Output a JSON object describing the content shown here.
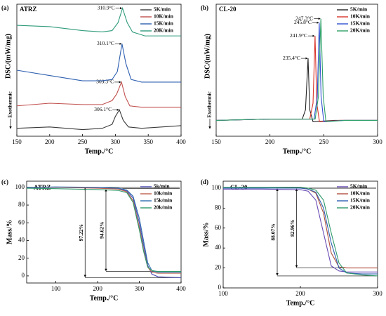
{
  "chart_data": [
    {
      "type": "line",
      "label": "(a)",
      "sample": "ATRZ",
      "xlabel": "Temp./°C",
      "ylabel": "DSC/(mW/mg)",
      "exo_label": "Exothermic",
      "xlim": [
        150,
        400
      ],
      "xticks": [
        150,
        200,
        250,
        300,
        350,
        400
      ],
      "ylim": [
        0,
        10
      ],
      "series": [
        {
          "name": "5K/min",
          "color": "#3a3a3a",
          "peak_label": "306.1°C",
          "x": [
            150,
            200,
            250,
            280,
            295,
            300,
            306.1,
            312,
            320,
            340,
            400
          ],
          "values": [
            0.6,
            0.7,
            0.5,
            0.6,
            0.9,
            1.5,
            2.0,
            1.2,
            0.7,
            0.6,
            0.8
          ]
        },
        {
          "name": "10K/min",
          "color": "#c0504d",
          "peak_label": "309.3°C",
          "x": [
            150,
            200,
            250,
            280,
            295,
            302,
            309.3,
            315,
            322,
            340,
            400
          ],
          "values": [
            2.3,
            2.5,
            2.4,
            2.4,
            2.7,
            3.2,
            4.1,
            3.0,
            2.3,
            2.2,
            2.2
          ]
        },
        {
          "name": "15K/min",
          "color": "#2e5fb0",
          "peak_label": "310.1°C",
          "x": [
            150,
            200,
            250,
            280,
            295,
            303,
            310.1,
            316,
            324,
            340,
            400
          ],
          "values": [
            5.0,
            4.6,
            4.2,
            4.2,
            4.3,
            4.9,
            7.0,
            5.5,
            4.3,
            4.1,
            4.1
          ]
        },
        {
          "name": "20K/min",
          "color": "#2e9a7a",
          "peak_label": "310.9°C",
          "x": [
            150,
            200,
            250,
            280,
            295,
            304,
            310.9,
            318,
            326,
            345,
            400
          ],
          "values": [
            8.4,
            8.3,
            8.0,
            7.9,
            8.0,
            8.6,
            9.7,
            8.6,
            7.9,
            7.6,
            7.6
          ]
        }
      ]
    },
    {
      "type": "line",
      "label": "(b)",
      "sample": "CL-20",
      "xlabel": "Temp./°C",
      "ylabel": "DSC/(mW/mg)",
      "exo_label": "Exothermic",
      "xlim": [
        150,
        300
      ],
      "xticks": [
        150,
        200,
        250,
        300
      ],
      "ylim": [
        0,
        10
      ],
      "series": [
        {
          "name": "5K/min",
          "color": "#222222",
          "peak_label": "235.4°C",
          "x": [
            150,
            200,
            230,
            233,
            235.4,
            237,
            240,
            260,
            300
          ],
          "values": [
            1.2,
            1.3,
            1.3,
            2,
            5.9,
            2,
            1.1,
            1.2,
            1.2
          ]
        },
        {
          "name": "10K/min",
          "color": "#d9342b",
          "peak_label": "241.9°C",
          "x": [
            150,
            200,
            237,
            240,
            241.9,
            243.5,
            246,
            265,
            300
          ],
          "values": [
            1.2,
            1.3,
            1.3,
            2.5,
            7.6,
            2.5,
            1.1,
            1.2,
            1.2
          ]
        },
        {
          "name": "15K/min",
          "color": "#2f4fd0",
          "peak_label": "245.8°C",
          "x": [
            150,
            200,
            241,
            244,
            245.8,
            247.5,
            250,
            268,
            300
          ],
          "values": [
            1.2,
            1.3,
            1.3,
            3,
            8.6,
            3,
            1.1,
            1.2,
            1.2
          ]
        },
        {
          "name": "20K/min",
          "color": "#2ea06a",
          "peak_label": "247.3°C",
          "x": [
            150,
            200,
            242,
            245,
            247.3,
            249.5,
            252,
            270,
            300
          ],
          "values": [
            1.2,
            1.3,
            1.3,
            3,
            8.9,
            3,
            1.1,
            1.2,
            1.2
          ]
        }
      ]
    },
    {
      "type": "line",
      "label": "(c)",
      "sample": "ATRZ",
      "xlabel": "Temp./°C",
      "ylabel": "Mass/%",
      "xlim": [
        30,
        400
      ],
      "xticks": [
        100,
        200,
        300,
        400
      ],
      "ylim": [
        -8,
        107
      ],
      "yticks": [
        0,
        20,
        40,
        60,
        80,
        100
      ],
      "annotations": [
        {
          "text": "97.22%",
          "x": 170,
          "y1": 100,
          "y2": -2
        },
        {
          "text": "94.62%",
          "x": 220,
          "y1": 98.5,
          "y2": 5
        }
      ],
      "series": [
        {
          "name": "5k/min",
          "color": "#4b4bb5",
          "x": [
            30,
            100,
            200,
            250,
            270,
            285,
            300,
            310,
            320,
            330,
            345,
            400
          ],
          "values": [
            100,
            100,
            99.5,
            98.5,
            96,
            88,
            60,
            35,
            12,
            2,
            -1,
            -2
          ]
        },
        {
          "name": "10k/min",
          "color": "#c0604d",
          "x": [
            30,
            100,
            200,
            250,
            270,
            285,
            300,
            310,
            320,
            330,
            345,
            400
          ],
          "values": [
            100,
            100,
            99,
            98,
            95,
            85,
            55,
            30,
            10,
            4,
            3,
            3
          ]
        },
        {
          "name": "15k/min",
          "color": "#2e6fb0",
          "x": [
            30,
            100,
            200,
            250,
            270,
            285,
            300,
            310,
            320,
            330,
            345,
            400
          ],
          "values": [
            100,
            100.5,
            100,
            99,
            97,
            90,
            65,
            40,
            15,
            6,
            4,
            4
          ]
        },
        {
          "name": "20k/min",
          "color": "#2e9a6a",
          "x": [
            30,
            100,
            200,
            250,
            270,
            285,
            300,
            310,
            320,
            330,
            345,
            400
          ],
          "values": [
            99,
            98.5,
            97.5,
            96.5,
            94,
            83,
            52,
            28,
            10,
            6,
            5,
            5
          ]
        }
      ]
    },
    {
      "type": "line",
      "label": "(d)",
      "sample": "CL-20",
      "xlabel": "Temp./°C",
      "ylabel": "Mass/%",
      "xlim": [
        100,
        300
      ],
      "xticks": [
        100,
        200,
        300
      ],
      "ylim": [
        0,
        107
      ],
      "yticks": [
        0,
        20,
        40,
        60,
        80,
        100
      ],
      "annotations": [
        {
          "text": "88.07%",
          "x": 170,
          "y1": 100,
          "y2": 12
        },
        {
          "text": "82.96%",
          "x": 195,
          "y1": 100,
          "y2": 20
        }
      ],
      "series": [
        {
          "name": "5K/min",
          "color": "#6a4bb5",
          "x": [
            100,
            150,
            200,
            210,
            220,
            230,
            240,
            250,
            260,
            280,
            300
          ],
          "values": [
            99,
            99,
            98.5,
            97,
            88,
            55,
            22,
            17,
            16,
            16,
            16
          ]
        },
        {
          "name": "10K/min",
          "color": "#b0503d",
          "x": [
            100,
            150,
            200,
            210,
            220,
            230,
            240,
            250,
            260,
            280,
            300
          ],
          "values": [
            101,
            101,
            100.5,
            99,
            95,
            75,
            35,
            21,
            20,
            20,
            20
          ]
        },
        {
          "name": "15K/min",
          "color": "#2e5fb0",
          "x": [
            100,
            150,
            200,
            210,
            220,
            230,
            240,
            250,
            260,
            280,
            300
          ],
          "values": [
            100,
            100,
            100,
            99,
            96,
            80,
            45,
            20,
            15,
            14,
            14
          ]
        },
        {
          "name": "20K/min",
          "color": "#2e9a6a",
          "x": [
            100,
            150,
            200,
            210,
            220,
            230,
            240,
            250,
            260,
            280,
            300
          ],
          "values": [
            101,
            101,
            101,
            100,
            98,
            88,
            55,
            25,
            15,
            13,
            12
          ]
        }
      ]
    }
  ]
}
